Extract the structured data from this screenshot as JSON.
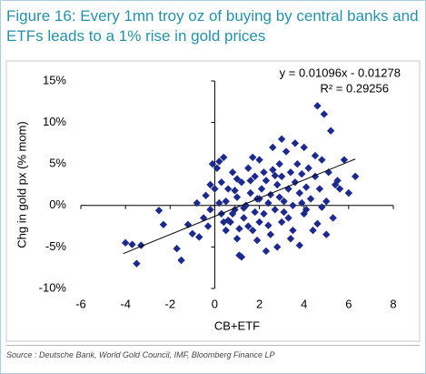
{
  "chart_data": {
    "type": "scatter",
    "title": "Figure 16: Every 1mn troy oz of buying by central banks and ETFs leads to a 1% rise in gold prices",
    "xlabel": "CB+ETF",
    "ylabel": "Chg in gold px (% mom)",
    "annotations": [
      "y = 0.01096x - 0.01278",
      "R² = 0.29256"
    ],
    "source": "Source : Deutsche Bank, World Gold Council, IMF, Bloomberg Finance LP",
    "color": "#1f2a88",
    "xlim": [
      -6,
      8
    ],
    "xticks": [
      -6,
      -4,
      -2,
      0,
      2,
      4,
      6,
      8
    ],
    "ylim": [
      -10,
      15
    ],
    "yticks": [
      {
        "value": -10,
        "label": "-10%"
      },
      {
        "value": -5,
        "label": "-5%"
      },
      {
        "value": 0,
        "label": "0%"
      },
      {
        "value": 5,
        "label": "5%"
      },
      {
        "value": 10,
        "label": "10%"
      },
      {
        "value": 15,
        "label": "15%"
      }
    ],
    "x": [
      -4,
      -3.7,
      -3.5,
      -3.3,
      -2.5,
      -2.3,
      -1.7,
      -1.5,
      -1.2,
      -1,
      -0.8,
      -0.7,
      -0.5,
      -0.4,
      -0.3,
      -0.2,
      -0.1,
      0,
      0.1,
      0.2,
      0.3,
      0.4,
      0.5,
      0.5,
      0.6,
      0.7,
      0.8,
      0.8,
      0.9,
      1,
      1,
      1.1,
      1.2,
      1.2,
      1.3,
      1.4,
      1.5,
      1.5,
      1.6,
      1.7,
      1.8,
      1.8,
      1.9,
      2,
      2,
      2.1,
      2.2,
      2.3,
      2.3,
      2.4,
      2.5,
      2.5,
      2.6,
      2.7,
      2.8,
      2.8,
      2.9,
      3,
      3,
      3.1,
      3.2,
      3.3,
      3.3,
      3.4,
      3.5,
      3.5,
      3.6,
      3.7,
      3.8,
      3.8,
      3.9,
      4,
      4,
      4.1,
      4.2,
      4.3,
      4.4,
      4.5,
      4.6,
      4.7,
      4.8,
      4.9,
      5,
      5.1,
      5.2,
      5.3,
      5.5,
      5.6,
      5.8,
      6,
      6.3,
      4.5,
      3.6,
      3,
      2.6,
      1.7,
      1,
      0.3,
      0.6,
      1.3,
      2,
      2.4,
      3.1,
      4.1,
      4.6,
      5,
      0.2,
      0.9,
      1.6,
      2.2,
      2.9,
      3.4,
      1.1,
      0.4,
      -0.2,
      1.9,
      2.7,
      3.9,
      5.4,
      4.8
    ],
    "values": [
      -4.5,
      -4.7,
      -7,
      -4.8,
      -0.6,
      -2.3,
      -5.2,
      -6.6,
      -2.3,
      -3.4,
      0.3,
      -3.8,
      -1.5,
      1.2,
      -2.5,
      2.5,
      5,
      2,
      4.5,
      5.3,
      -1,
      5.8,
      -3,
      0.5,
      2,
      -2,
      -1,
      4,
      -0.5,
      1,
      -4,
      -6,
      -6.2,
      2.8,
      -1.5,
      0,
      4.5,
      -2.5,
      1.5,
      -3,
      3.5,
      -0.8,
      0.8,
      5.5,
      -2,
      2,
      -1,
      3,
      -5.5,
      0.3,
      1.3,
      -3.5,
      4.3,
      -0.5,
      2.5,
      -5,
      1,
      3.5,
      -2,
      0.5,
      6.5,
      2,
      -1.5,
      4,
      0,
      -3,
      2.8,
      5,
      1.5,
      -4.8,
      3.8,
      -1,
      7,
      2.2,
      4.5,
      0.8,
      -3,
      3.5,
      12,
      2,
      5.5,
      11,
      0.5,
      4,
      9,
      -1.5,
      3,
      2,
      5.5,
      1.5,
      3.5,
      6,
      7.5,
      8,
      7,
      5.8,
      3.2,
      2.8,
      -1.8,
      -0.3,
      0.8,
      -2.4,
      -0.8,
      -0.5,
      -2.2,
      -3.5,
      0.3,
      1.8,
      3,
      4,
      5,
      -4,
      -2.8,
      -2,
      -0.5,
      -4.2,
      3.6,
      0.3,
      2.5,
      -0.2
    ],
    "trendline": {
      "x": [
        -4.1,
        6.3
      ],
      "values": [
        -5.8,
        5.6
      ]
    }
  }
}
